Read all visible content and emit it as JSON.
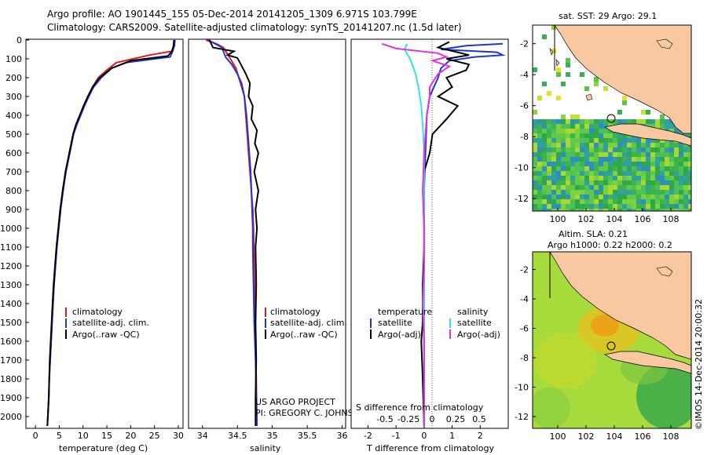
{
  "title": {
    "line1": "Argo profile: AO 1901445_155 05-Dec-2014 20141205_1309 6.971S 103.799E",
    "line2": "Climatology: CARS2009. Satellite-adjusted climatology: synTS_20141207.nc (1.5d later)"
  },
  "colors": {
    "climatology": "#e41a1c",
    "satellite": "#1f35d6",
    "argo": "#000000",
    "sat_salinity": "#2ee5e5",
    "argo_adj_salinity": "#e62ee5"
  },
  "temperature_panel": {
    "xlabel": "temperature (deg C)",
    "xticks": [
      "0",
      "5",
      "10",
      "15",
      "20",
      "25",
      "30"
    ],
    "legend": [
      "climatology",
      "satellite-adj. clim.",
      "Argo(..raw -QC)"
    ]
  },
  "salinity_panel": {
    "xlabel": "salinity",
    "xticks": [
      "34",
      "34.5",
      "35",
      "35.5",
      "36"
    ],
    "legend": [
      "climatology",
      "satellite-adj. clim.",
      "Argo(..raw -QC)"
    ],
    "credit1": "US ARGO PROJECT",
    "credit2": "PI: GREGORY C. JOHNSON"
  },
  "difference_panel": {
    "xlabel_top": "S difference from climatology",
    "xlabel_bottom": "T difference from climatology",
    "s_ticks": [
      "-0.5",
      "-0.25",
      "0",
      "0.25",
      "0.5"
    ],
    "t_ticks": [
      "-2",
      "-1",
      "0",
      "1",
      "2"
    ],
    "legend_temperature": "temperature",
    "legend_salinity": "salinity",
    "legend_sat": "satellite",
    "legend_argo": "Argo(-adj)"
  },
  "depth_ticks": [
    "0",
    "100",
    "200",
    "300",
    "400",
    "500",
    "600",
    "700",
    "800",
    "900",
    "1000",
    "1100",
    "1200",
    "1300",
    "1400",
    "1500",
    "1600",
    "1700",
    "1800",
    "1900",
    "2000"
  ],
  "map_sst": {
    "title": "sat. SST: 29 Argo: 29.1",
    "yticks": [
      "-2",
      "-4",
      "-6",
      "-8",
      "-10",
      "-12"
    ],
    "xticks": [
      "100",
      "102",
      "104",
      "106",
      "108"
    ]
  },
  "map_sla": {
    "title1": "Altim. SLA: 0.21",
    "title2": "Argo h1000: 0.22 h2000: 0.2",
    "yticks": [
      "-2",
      "-4",
      "-6",
      "-8",
      "-10",
      "-12"
    ],
    "xticks": [
      "100",
      "102",
      "104",
      "106",
      "108"
    ]
  },
  "side_credit": "©IMOS 14-Dec-2014 20:00:32",
  "chart_data": [
    {
      "type": "line",
      "title": "",
      "xlabel": "temperature (deg C)",
      "ylabel": "",
      "xlim": [
        -2,
        31
      ],
      "ylim": [
        2050,
        0
      ],
      "series": [
        {
          "name": "climatology",
          "points": [
            [
              29.2,
              0
            ],
            [
              29.0,
              30
            ],
            [
              28.6,
              60
            ],
            [
              24,
              80
            ],
            [
              17,
              120
            ],
            [
              15,
              160
            ],
            [
              13.2,
              200
            ],
            [
              12,
              250
            ],
            [
              11,
              300
            ],
            [
              10.2,
              350
            ],
            [
              9.4,
              400
            ],
            [
              8.6,
              450
            ],
            [
              8,
              500
            ],
            [
              7.2,
              600
            ],
            [
              6.4,
              700
            ],
            [
              5.8,
              800
            ],
            [
              5.3,
              900
            ],
            [
              4.9,
              1000
            ],
            [
              4.5,
              1100
            ],
            [
              4.2,
              1200
            ],
            [
              3.9,
              1300
            ],
            [
              3.7,
              1400
            ],
            [
              3.5,
              1500
            ],
            [
              3.3,
              1600
            ],
            [
              3.1,
              1700
            ],
            [
              2.9,
              1800
            ],
            [
              2.8,
              1900
            ],
            [
              2.6,
              2000
            ],
            [
              2.5,
              2050
            ]
          ]
        },
        {
          "name": "satellite-adj. clim.",
          "points": [
            [
              29.3,
              0
            ],
            [
              29.2,
              30
            ],
            [
              28.8,
              60
            ],
            [
              28.3,
              90
            ],
            [
              19,
              120
            ],
            [
              16,
              150
            ],
            [
              13.8,
              200
            ],
            [
              12.2,
              250
            ],
            [
              11.2,
              300
            ],
            [
              10.3,
              350
            ],
            [
              9.5,
              400
            ],
            [
              8.7,
              450
            ],
            [
              8,
              500
            ],
            [
              7.2,
              600
            ],
            [
              6.4,
              700
            ],
            [
              5.8,
              800
            ],
            [
              5.3,
              900
            ],
            [
              4.9,
              1000
            ],
            [
              4.5,
              1100
            ],
            [
              4.2,
              1200
            ],
            [
              3.9,
              1300
            ],
            [
              3.7,
              1400
            ],
            [
              3.5,
              1500
            ],
            [
              3.3,
              1600
            ],
            [
              3.1,
              1700
            ],
            [
              2.9,
              1800
            ],
            [
              2.8,
              1900
            ],
            [
              2.6,
              2000
            ],
            [
              2.5,
              2050
            ]
          ]
        },
        {
          "name": "Argo(..raw -QC)",
          "points": [
            [
              29.1,
              0
            ],
            [
              29.0,
              30
            ],
            [
              28.7,
              60
            ],
            [
              27.8,
              85
            ],
            [
              20,
              110
            ],
            [
              16,
              150
            ],
            [
              13.5,
              200
            ],
            [
              12,
              250
            ],
            [
              11,
              300
            ],
            [
              10.1,
              350
            ],
            [
              9.3,
              400
            ],
            [
              8.5,
              450
            ],
            [
              7.9,
              500
            ],
            [
              7.1,
              600
            ],
            [
              6.3,
              700
            ],
            [
              5.7,
              800
            ],
            [
              5.2,
              900
            ],
            [
              4.8,
              1000
            ],
            [
              4.4,
              1100
            ],
            [
              4.1,
              1200
            ],
            [
              3.8,
              1300
            ],
            [
              3.6,
              1400
            ],
            [
              3.4,
              1500
            ],
            [
              3.2,
              1600
            ],
            [
              3.0,
              1700
            ],
            [
              2.9,
              1800
            ],
            [
              2.8,
              1900
            ],
            [
              2.6,
              2000
            ],
            [
              2.5,
              2050
            ]
          ]
        }
      ]
    },
    {
      "type": "line",
      "title": "",
      "xlabel": "salinity",
      "ylabel": "",
      "xlim": [
        33.8,
        36.05
      ],
      "ylim": [
        2050,
        0
      ],
      "series": [
        {
          "name": "climatology",
          "points": [
            [
              34.05,
              0
            ],
            [
              34.2,
              20
            ],
            [
              34.3,
              40
            ],
            [
              34.35,
              70
            ],
            [
              34.4,
              100
            ],
            [
              34.48,
              150
            ],
            [
              34.52,
              200
            ],
            [
              34.56,
              250
            ],
            [
              34.6,
              300
            ],
            [
              34.62,
              400
            ],
            [
              34.64,
              500
            ],
            [
              34.66,
              600
            ],
            [
              34.68,
              700
            ],
            [
              34.7,
              800
            ],
            [
              34.72,
              900
            ],
            [
              34.73,
              1000
            ],
            [
              34.74,
              1200
            ],
            [
              34.75,
              1400
            ],
            [
              34.76,
              1600
            ],
            [
              34.77,
              1800
            ],
            [
              34.78,
              2050
            ]
          ]
        },
        {
          "name": "satellite-adj. clim.",
          "points": [
            [
              34.08,
              0
            ],
            [
              34.18,
              20
            ],
            [
              34.28,
              40
            ],
            [
              34.3,
              60
            ],
            [
              34.33,
              90
            ],
            [
              34.42,
              130
            ],
            [
              34.5,
              180
            ],
            [
              34.56,
              230
            ],
            [
              34.6,
              300
            ],
            [
              34.63,
              400
            ],
            [
              34.65,
              500
            ],
            [
              34.67,
              600
            ],
            [
              34.69,
              700
            ],
            [
              34.7,
              800
            ],
            [
              34.71,
              900
            ],
            [
              34.72,
              1000
            ],
            [
              34.72,
              1100
            ],
            [
              34.73,
              1300
            ],
            [
              34.74,
              1500
            ],
            [
              34.76,
              1700
            ],
            [
              34.77,
              1900
            ],
            [
              34.78,
              2050
            ]
          ]
        },
        {
          "name": "Argo(..raw -QC)",
          "points": [
            [
              34.1,
              0
            ],
            [
              34.15,
              40
            ],
            [
              34.45,
              60
            ],
            [
              34.36,
              80
            ],
            [
              34.5,
              95
            ],
            [
              34.55,
              130
            ],
            [
              34.62,
              180
            ],
            [
              34.68,
              230
            ],
            [
              34.66,
              300
            ],
            [
              34.72,
              350
            ],
            [
              34.7,
              420
            ],
            [
              34.78,
              480
            ],
            [
              34.75,
              550
            ],
            [
              34.8,
              600
            ],
            [
              34.74,
              700
            ],
            [
              34.8,
              800
            ],
            [
              34.76,
              900
            ],
            [
              34.78,
              1000
            ],
            [
              34.76,
              1100
            ],
            [
              34.77,
              1300
            ],
            [
              34.76,
              1500
            ],
            [
              34.77,
              1700
            ],
            [
              34.76,
              1900
            ],
            [
              34.76,
              2050
            ]
          ]
        }
      ]
    },
    {
      "type": "line",
      "title": "",
      "xlabel": "T difference from climatology",
      "ylabel": "",
      "xlim": [
        -2.6,
        3.0
      ],
      "ylim": [
        2050,
        0
      ],
      "series": [
        {
          "name": "temperature satellite",
          "points": [
            [
              2.8,
              20
            ],
            [
              1.5,
              30
            ],
            [
              0.6,
              50
            ],
            [
              2.6,
              65
            ],
            [
              2.8,
              80
            ],
            [
              1.8,
              90
            ],
            [
              0.9,
              110
            ],
            [
              0.6,
              150
            ],
            [
              0.5,
              200
            ],
            [
              0.2,
              300
            ],
            [
              0.1,
              400
            ],
            [
              0.05,
              600
            ],
            [
              0.0,
              800
            ],
            [
              0.0,
              1000
            ],
            [
              0.0,
              1200
            ],
            [
              0.0,
              1500
            ],
            [
              0.0,
              1800
            ],
            [
              0.0,
              2050
            ]
          ]
        },
        {
          "name": "temperature Argo(-adj)",
          "points": [
            [
              0.9,
              10
            ],
            [
              0.5,
              40
            ],
            [
              1.6,
              80
            ],
            [
              0.8,
              100
            ],
            [
              1.6,
              130
            ],
            [
              1.5,
              160
            ],
            [
              0.8,
              200
            ],
            [
              1.0,
              250
            ],
            [
              0.5,
              300
            ],
            [
              1.2,
              350
            ],
            [
              0.8,
              420
            ],
            [
              0.3,
              500
            ],
            [
              0.2,
              600
            ],
            [
              0.0,
              700
            ],
            [
              0.0,
              900
            ],
            [
              0.0,
              1100
            ],
            [
              -0.05,
              1300
            ],
            [
              -0.05,
              1500
            ],
            [
              -0.1,
              1600
            ],
            [
              -0.05,
              1800
            ],
            [
              0.0,
              2050
            ]
          ]
        },
        {
          "name": "salinity satellite",
          "points": [
            [
              -0.6,
              20
            ],
            [
              -0.7,
              50
            ],
            [
              -0.5,
              100
            ],
            [
              -0.3,
              180
            ],
            [
              -0.2,
              250
            ],
            [
              -0.1,
              350
            ],
            [
              -0.05,
              450
            ],
            [
              0.0,
              600
            ],
            [
              0.0,
              800
            ],
            [
              0.0,
              1000
            ],
            [
              0.0,
              1200
            ],
            [
              0.0,
              1500
            ],
            [
              0.0,
              1800
            ],
            [
              0.0,
              2050
            ]
          ]
        },
        {
          "name": "salinity Argo(-adj)",
          "points": [
            [
              -1.5,
              20
            ],
            [
              -1.0,
              45
            ],
            [
              0.5,
              70
            ],
            [
              0.8,
              90
            ],
            [
              0.3,
              110
            ],
            [
              0.9,
              140
            ],
            [
              0.5,
              180
            ],
            [
              0.2,
              250
            ],
            [
              0.2,
              300
            ],
            [
              0.1,
              400
            ],
            [
              0.05,
              500
            ],
            [
              0.0,
              600
            ],
            [
              -0.05,
              800
            ],
            [
              0.0,
              1000
            ],
            [
              0.0,
              1200
            ],
            [
              -0.05,
              1400
            ],
            [
              0.0,
              1600
            ],
            [
              0.0,
              2050
            ]
          ]
        }
      ]
    }
  ]
}
